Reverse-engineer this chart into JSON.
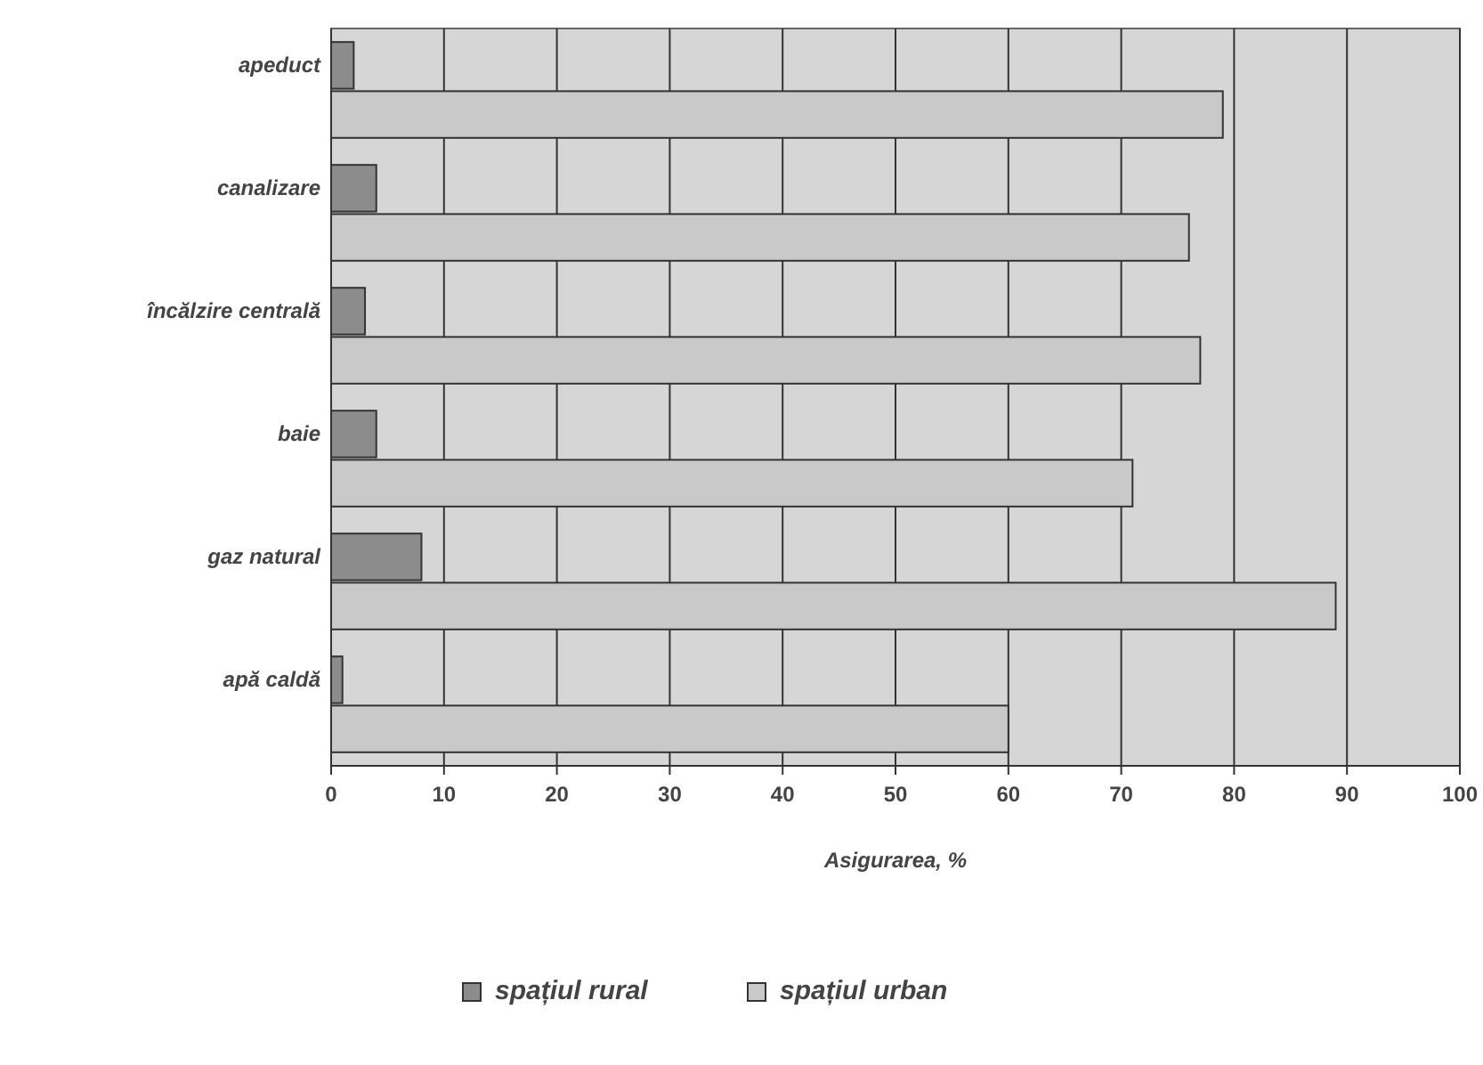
{
  "chart_data": {
    "type": "bar",
    "orientation": "horizontal",
    "xlabel": "Asigurarea, %",
    "categories": [
      "apeduct",
      "canalizare",
      "încălzire centrală",
      "baie",
      "gaz natural",
      "apă caldă"
    ],
    "series": [
      {
        "name": "spațiul rural",
        "color": "#8c8c8c",
        "values": [
          2,
          4,
          3,
          4,
          8,
          1
        ]
      },
      {
        "name": "spațiul urban",
        "color": "#c9c9c9",
        "values": [
          79,
          76,
          77,
          71,
          89,
          60
        ]
      }
    ],
    "xlim": [
      0,
      100
    ],
    "xticks": [
      0,
      10,
      20,
      30,
      40,
      50,
      60,
      70,
      80,
      90,
      100
    ],
    "grid": "x",
    "legend": "bottom"
  }
}
